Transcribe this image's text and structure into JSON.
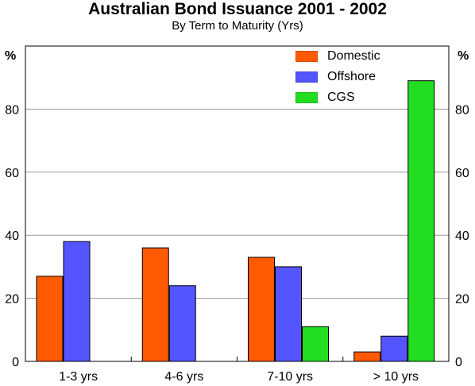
{
  "chart_data": {
    "type": "bar",
    "title": "Australian Bond Issuance 2001 - 2002",
    "subtitle": "By Term to Maturity (Yrs)",
    "unit_left": "%",
    "unit_right": "%",
    "categories": [
      "1-3 yrs",
      "4-6 yrs",
      "7-10 yrs",
      "> 10 yrs"
    ],
    "series": [
      {
        "name": "Domestic",
        "color": "#ff5a00",
        "values": [
          27,
          36,
          33,
          3
        ]
      },
      {
        "name": "Offshore",
        "color": "#5555ff",
        "values": [
          38,
          24,
          30,
          8
        ]
      },
      {
        "name": "CGS",
        "color": "#22dd22",
        "values": [
          0,
          0,
          11,
          89
        ]
      }
    ],
    "ylim": [
      0,
      100
    ],
    "yticks": [
      0,
      20,
      40,
      60,
      80
    ],
    "grid": true,
    "legend_position": "top-right"
  }
}
